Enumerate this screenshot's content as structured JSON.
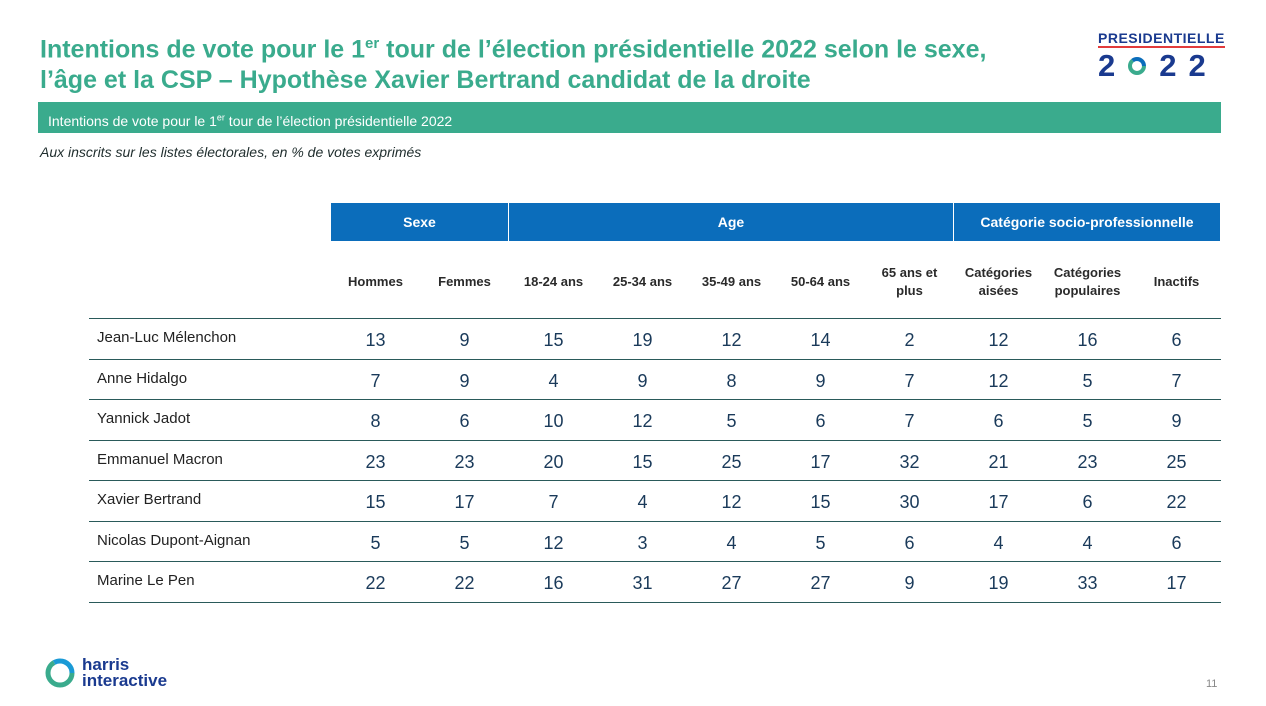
{
  "header": {
    "title_line1_a": "Intentions de vote pour le 1",
    "title_line1_sup": "er",
    "title_line1_b": " tour de l’élection présidentielle 2022 selon le sexe,",
    "title_line2": "l’âge et la CSP – Hypothèse Xavier Bertrand candidat de la droite"
  },
  "logo": {
    "top": "PRESIDENTIELLE",
    "digits": [
      "2",
      "2",
      "2"
    ],
    "ring_colors": [
      "#3aab8d",
      "#0b6dbb"
    ]
  },
  "banner": {
    "text_a": "Intentions de vote pour le 1",
    "sup": "er",
    "text_b": " tour de l’élection présidentielle 2022"
  },
  "subtitle": "Aux inscrits sur les listes électorales, en % de votes exprimés",
  "groups": [
    "Sexe",
    "Age",
    "Catégorie socio-professionnelle"
  ],
  "columns": [
    [
      "Hommes"
    ],
    [
      "Femmes"
    ],
    [
      "18-24 ans"
    ],
    [
      "25-34 ans"
    ],
    [
      "35-49 ans"
    ],
    [
      "50-64 ans"
    ],
    [
      "65 ans et",
      "plus"
    ],
    [
      "Catégories",
      "aisées"
    ],
    [
      "Catégories",
      "populaires"
    ],
    [
      "Inactifs"
    ]
  ],
  "rows": [
    {
      "name": "Jean-Luc Mélenchon",
      "values": [
        13,
        9,
        15,
        19,
        12,
        14,
        2,
        12,
        16,
        6
      ]
    },
    {
      "name": "Anne Hidalgo",
      "values": [
        7,
        9,
        4,
        9,
        8,
        9,
        7,
        12,
        5,
        7
      ]
    },
    {
      "name": "Yannick Jadot",
      "values": [
        8,
        6,
        10,
        12,
        5,
        6,
        7,
        6,
        5,
        9
      ]
    },
    {
      "name": "Emmanuel Macron",
      "values": [
        23,
        23,
        20,
        15,
        25,
        17,
        32,
        21,
        23,
        25
      ]
    },
    {
      "name": "Xavier Bertrand",
      "values": [
        15,
        17,
        7,
        4,
        12,
        15,
        30,
        17,
        6,
        22
      ]
    },
    {
      "name": "Nicolas Dupont-Aignan",
      "values": [
        5,
        5,
        12,
        3,
        4,
        5,
        6,
        4,
        4,
        6
      ]
    },
    {
      "name": "Marine Le Pen",
      "values": [
        22,
        22,
        16,
        31,
        27,
        27,
        9,
        19,
        33,
        17
      ]
    }
  ],
  "footer": {
    "brand_line1": "harris",
    "brand_line2": "interactive",
    "page_number": "11"
  }
}
